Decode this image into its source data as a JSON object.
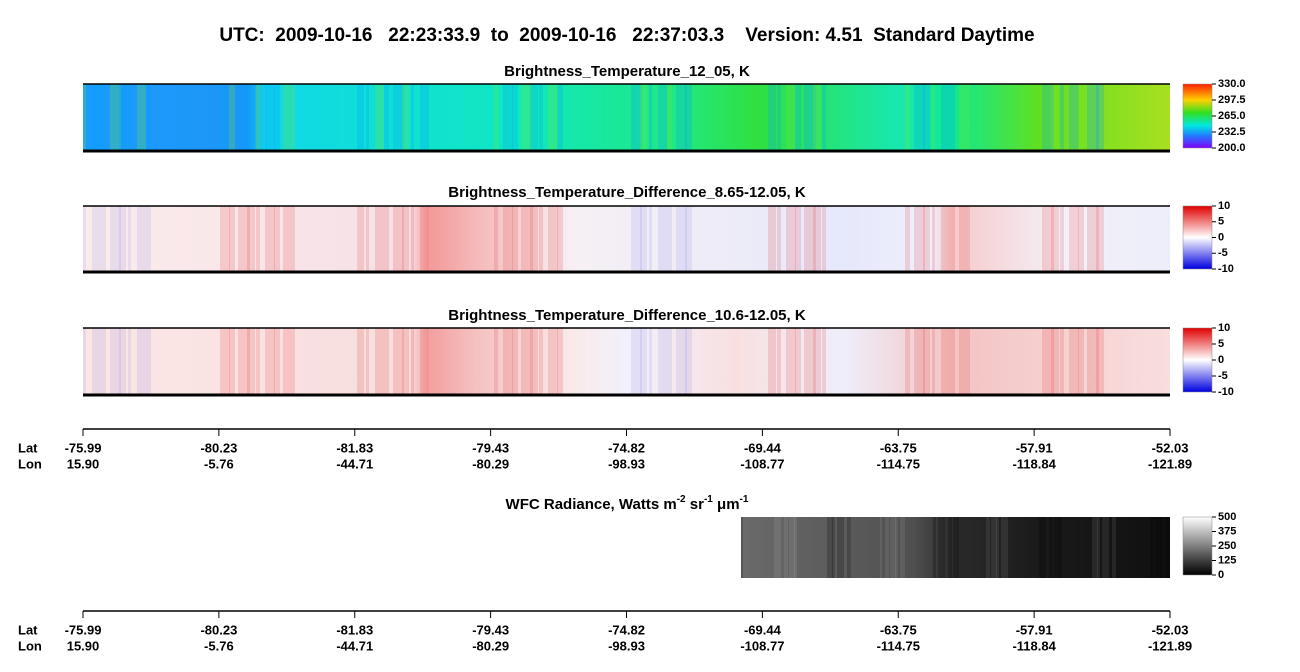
{
  "title": "UTC:  2009-10-16   22:23:33.9  to  2009-10-16   22:37:03.3    Version: 4.51  Standard Daytime",
  "panels": [
    {
      "title": "Brightness_Temperature_12_05, K",
      "colorbar": [
        "330.0",
        "297.5",
        "265.0",
        "232.5",
        "200.0"
      ]
    },
    {
      "title": "Brightness_Temperature_Difference_8.65-12.05, K",
      "colorbar": [
        "10",
        "5",
        "0",
        "-5",
        "-10"
      ]
    },
    {
      "title": "Brightness_Temperature_Difference_10.6-12.05, K",
      "colorbar": [
        "10",
        "5",
        "0",
        "-5",
        "-10"
      ]
    }
  ],
  "wfc": {
    "title_parts": [
      "WFC Radiance, Watts m",
      "-2",
      " sr",
      "-1",
      " μm",
      "-1"
    ],
    "colorbar": [
      "500",
      "375",
      "250",
      "125",
      "0"
    ]
  },
  "axes": [
    {
      "lat_label": "Lat",
      "lon_label": "Lon",
      "lat": [
        "-75.99",
        "-80.23",
        "-81.83",
        "-79.43",
        "-74.82",
        "-69.44",
        "-63.75",
        "-57.91",
        "-52.03"
      ],
      "lon": [
        "15.90",
        "-5.76",
        "-44.71",
        "-80.29",
        "-98.93",
        "-108.77",
        "-114.75",
        "-118.84",
        "-121.89"
      ]
    },
    {
      "lat_label": "Lat",
      "lon_label": "Lon",
      "lat": [
        "-75.99",
        "-80.23",
        "-81.83",
        "-79.43",
        "-74.82",
        "-69.44",
        "-63.75",
        "-57.91",
        "-52.03"
      ],
      "lon": [
        "15.90",
        "-5.76",
        "-44.71",
        "-80.29",
        "-98.93",
        "-108.77",
        "-114.75",
        "-118.84",
        "-121.89"
      ]
    }
  ]
}
